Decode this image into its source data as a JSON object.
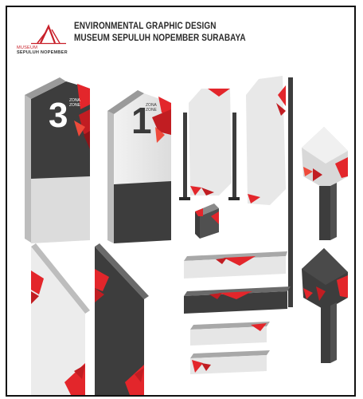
{
  "header": {
    "title_line1": "ENVIRONMENTAL GRAPHIC DESIGN",
    "title_line2": "MUSEUM SEPULUH NOPEMBER SURABAYA"
  },
  "logo": {
    "line1": "MUSEUM",
    "line2": "SEPULUH NOPEMBER"
  },
  "signs": {
    "sign3_number": "3",
    "sign3_label1": "ZONA",
    "sign3_label2": "ZONE",
    "sign1_number": "1",
    "sign1_label1": "ZONA",
    "sign1_label2": "ZONE"
  },
  "colors": {
    "accent": "#e3262b",
    "dark": "#3b3b3b",
    "light": "#ececec",
    "frame": "#111111"
  }
}
